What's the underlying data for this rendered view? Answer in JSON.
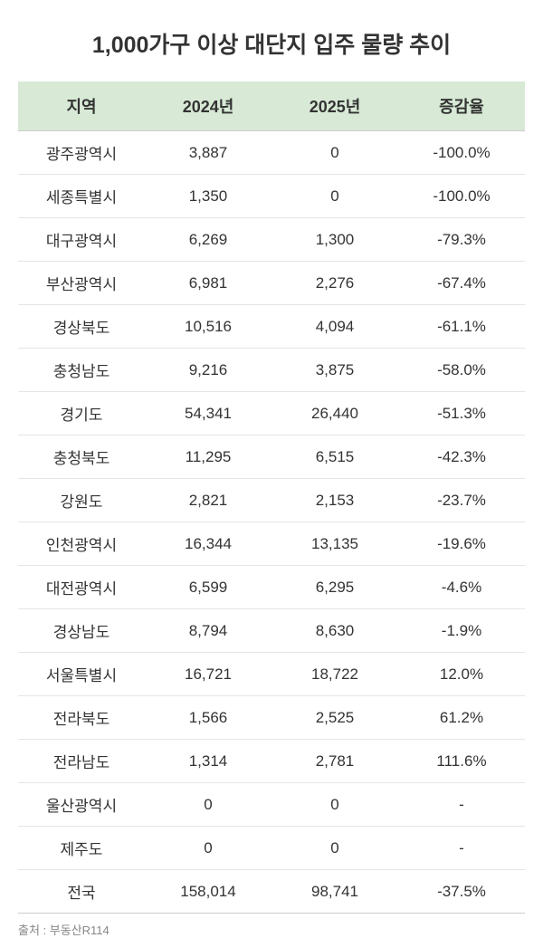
{
  "title": "1,000가구 이상 대단지 입주 물량 추이",
  "table": {
    "columns": [
      "지역",
      "2024년",
      "2025년",
      "증감율"
    ],
    "rows": [
      {
        "region": "광주광역시",
        "y2024": "3,887",
        "y2025": "0",
        "rate": "-100.0%"
      },
      {
        "region": "세종특별시",
        "y2024": "1,350",
        "y2025": "0",
        "rate": "-100.0%"
      },
      {
        "region": "대구광역시",
        "y2024": "6,269",
        "y2025": "1,300",
        "rate": "-79.3%"
      },
      {
        "region": "부산광역시",
        "y2024": "6,981",
        "y2025": "2,276",
        "rate": "-67.4%"
      },
      {
        "region": "경상북도",
        "y2024": "10,516",
        "y2025": "4,094",
        "rate": "-61.1%"
      },
      {
        "region": "충청남도",
        "y2024": "9,216",
        "y2025": "3,875",
        "rate": "-58.0%"
      },
      {
        "region": "경기도",
        "y2024": "54,341",
        "y2025": "26,440",
        "rate": "-51.3%"
      },
      {
        "region": "충청북도",
        "y2024": "11,295",
        "y2025": "6,515",
        "rate": "-42.3%"
      },
      {
        "region": "강원도",
        "y2024": "2,821",
        "y2025": "2,153",
        "rate": "-23.7%"
      },
      {
        "region": "인천광역시",
        "y2024": "16,344",
        "y2025": "13,135",
        "rate": "-19.6%"
      },
      {
        "region": "대전광역시",
        "y2024": "6,599",
        "y2025": "6,295",
        "rate": "-4.6%"
      },
      {
        "region": "경상남도",
        "y2024": "8,794",
        "y2025": "8,630",
        "rate": "-1.9%"
      },
      {
        "region": "서울특별시",
        "y2024": "16,721",
        "y2025": "18,722",
        "rate": "12.0%"
      },
      {
        "region": "전라북도",
        "y2024": "1,566",
        "y2025": "2,525",
        "rate": "61.2%"
      },
      {
        "region": "전라남도",
        "y2024": "1,314",
        "y2025": "2,781",
        "rate": "111.6%"
      },
      {
        "region": "울산광역시",
        "y2024": "0",
        "y2025": "0",
        "rate": "-"
      },
      {
        "region": "제주도",
        "y2024": "0",
        "y2025": "0",
        "rate": "-"
      }
    ],
    "total": {
      "region": "전국",
      "y2024": "158,014",
      "y2025": "98,741",
      "rate": "-37.5%"
    }
  },
  "source": "출처 : 부동산R114",
  "colors": {
    "header_bg": "#d8ead6",
    "border": "#e5e5e5",
    "header_border": "#cccccc",
    "text": "#333333",
    "source_text": "#888888",
    "background": "#ffffff"
  },
  "typography": {
    "title_fontsize": 25,
    "header_fontsize": 18,
    "cell_fontsize": 17,
    "source_fontsize": 13
  }
}
